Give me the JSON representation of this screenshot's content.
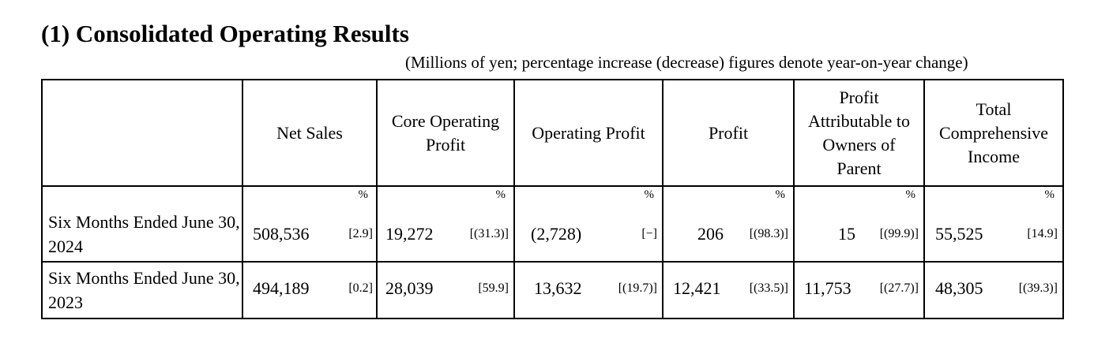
{
  "title": "(1) Consolidated Operating Results",
  "unit_note": "(Millions of yen; percentage increase (decrease) figures denote year-on-year change)",
  "columns": [
    "Net Sales",
    "Core Operating Profit",
    "Operating Profit",
    "Profit",
    "Profit Attributable to Owners of Parent",
    "Total Comprehensive Income"
  ],
  "pct_symbol": "%",
  "rows": [
    {
      "label": "Six Months Ended June 30, 2024",
      "cells": [
        {
          "value": "508,536",
          "change": "[2.9]"
        },
        {
          "value": "19,272",
          "change": "[(31.3)]"
        },
        {
          "value": "(2,728)",
          "change": "[−]"
        },
        {
          "value": "206",
          "change": "[(98.3)]"
        },
        {
          "value": "15",
          "change": "[(99.9)]"
        },
        {
          "value": "55,525",
          "change": "[14.9]"
        }
      ]
    },
    {
      "label": "Six Months Ended June 30, 2023",
      "cells": [
        {
          "value": "494,189",
          "change": "[0.2]"
        },
        {
          "value": "28,039",
          "change": "[59.9]"
        },
        {
          "value": "13,632",
          "change": "[(19.7)]"
        },
        {
          "value": "12,421",
          "change": "[(33.5)]"
        },
        {
          "value": "11,753",
          "change": "[(27.7)]"
        },
        {
          "value": "48,305",
          "change": "[(39.3)]"
        }
      ]
    }
  ]
}
